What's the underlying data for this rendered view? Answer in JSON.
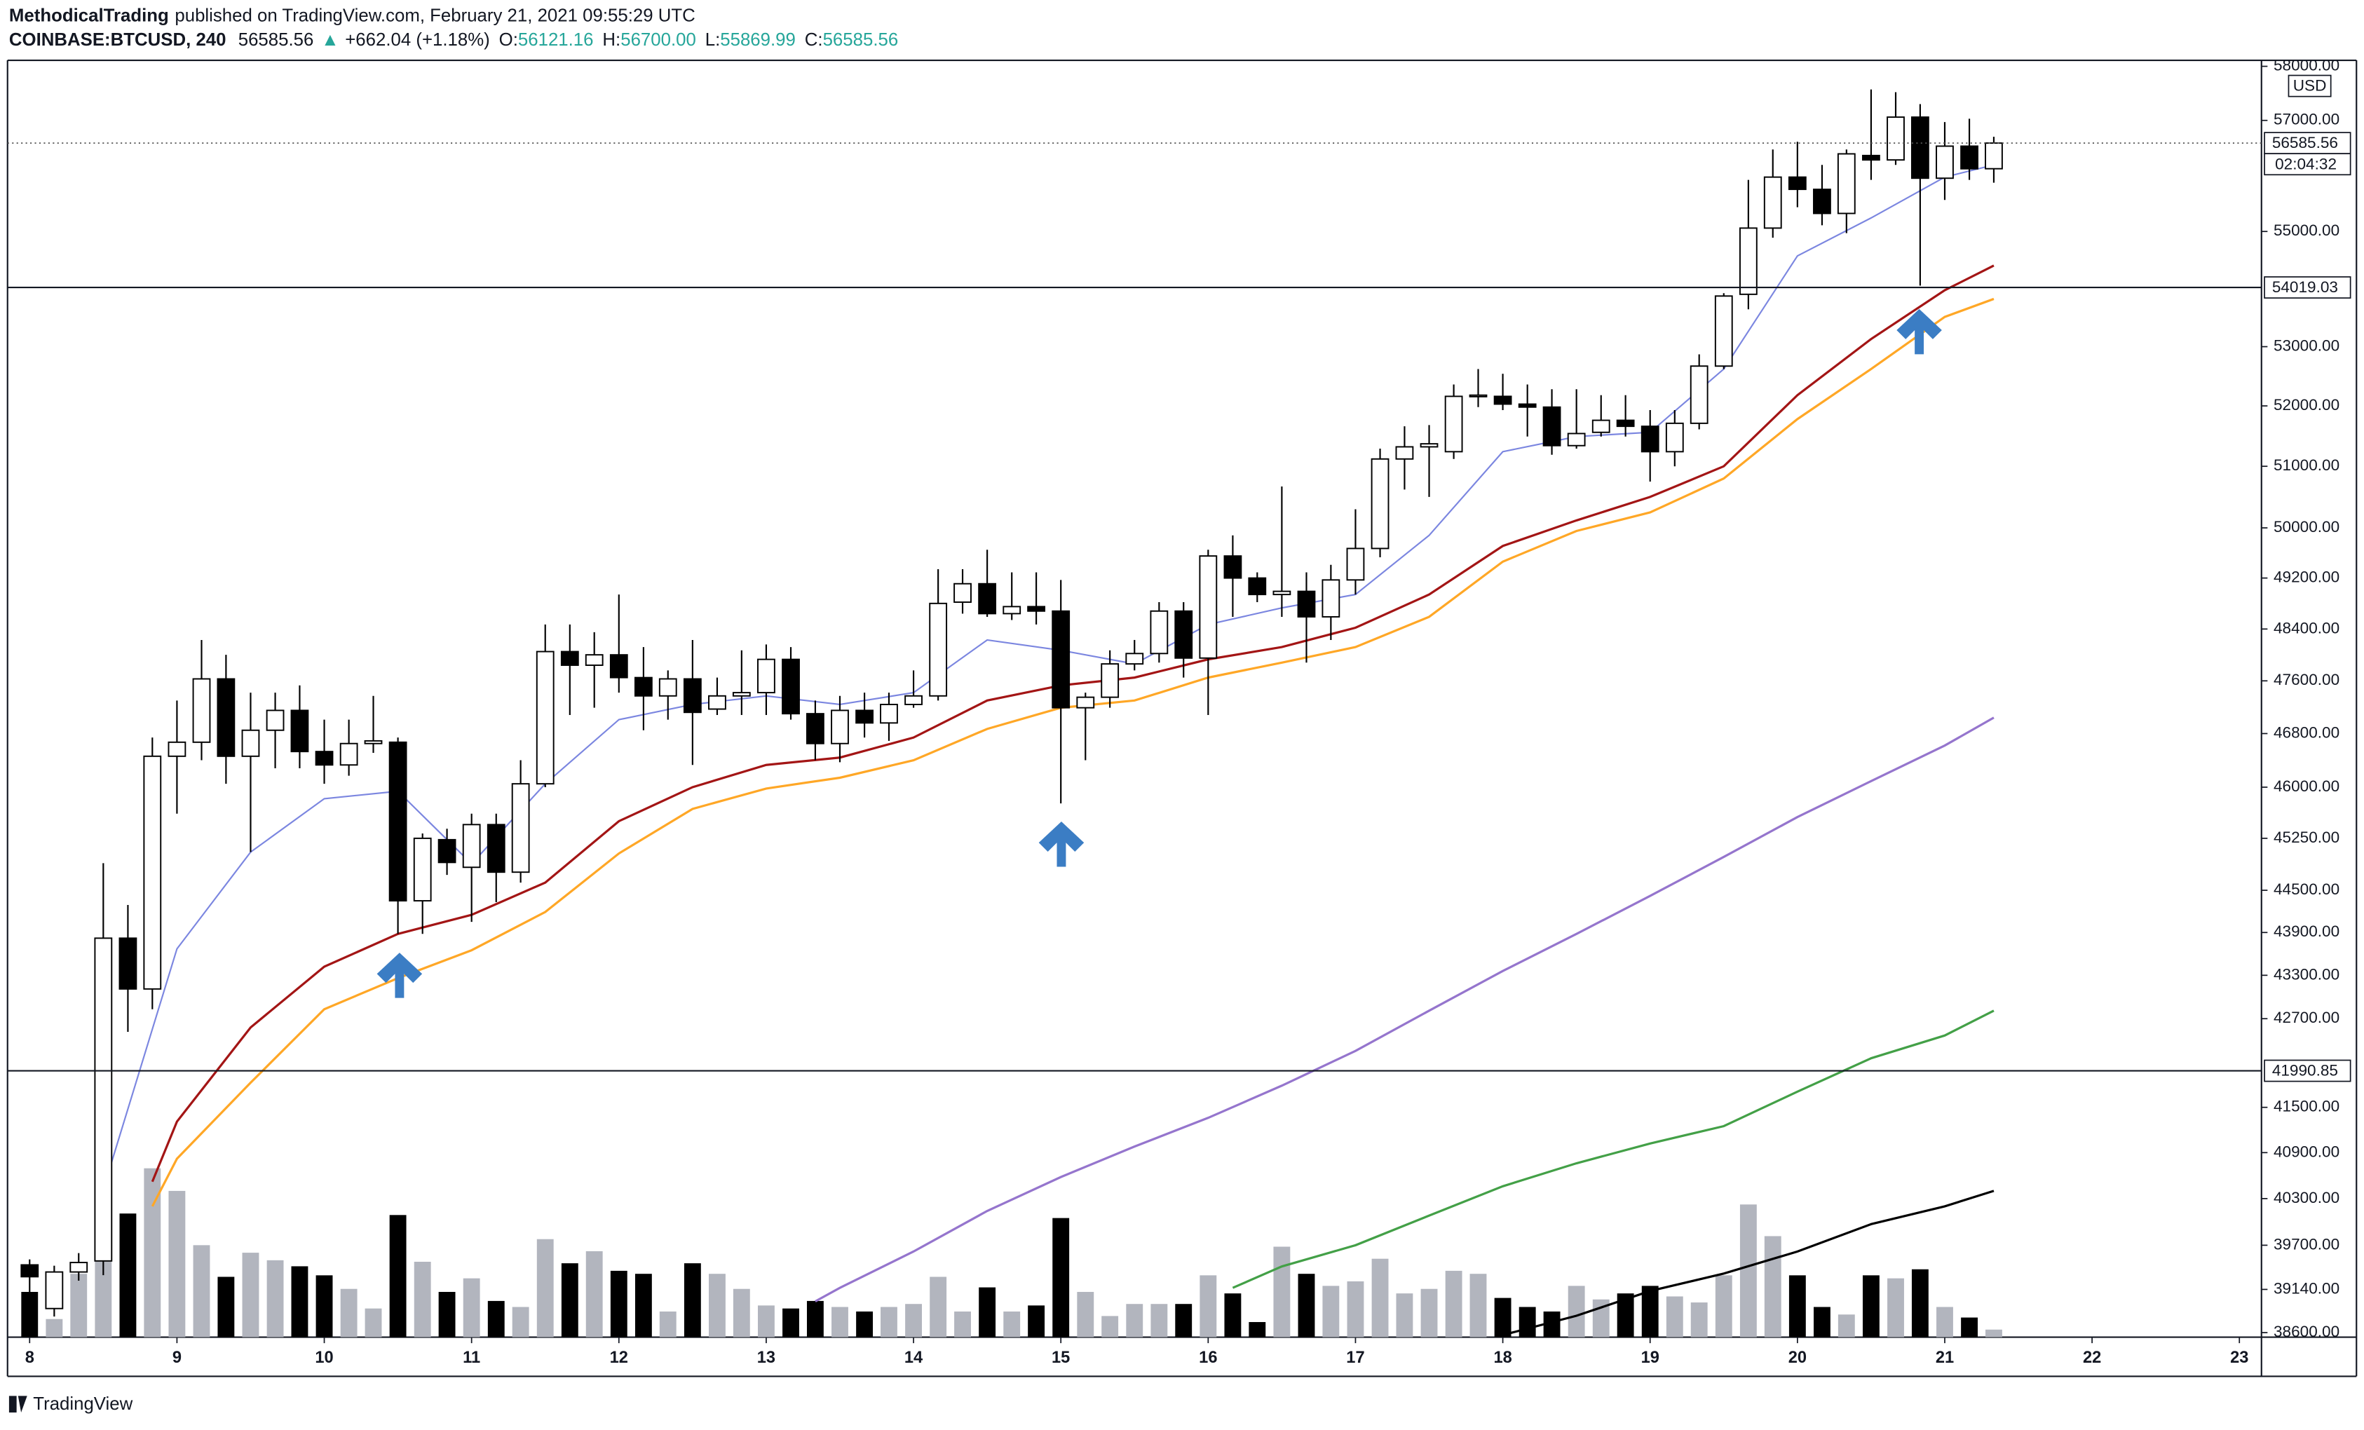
{
  "header": {
    "author": "MethodicalTrading",
    "published": "published on TradingView.com, February 21, 2021 09:55:29 UTC",
    "symbol": "COINBASE:BTCUSD, 240",
    "price": "56585.56",
    "change_arrow": "▲",
    "change": "+662.04 (+1.18%)",
    "ohlc": [
      {
        "label": "O:",
        "value": "56121.16"
      },
      {
        "label": "H:",
        "value": "56700.00"
      },
      {
        "label": "L:",
        "value": "55869.99"
      },
      {
        "label": "C:",
        "value": "56585.56"
      }
    ]
  },
  "footer": {
    "brand": "TradingView"
  },
  "chart_data": {
    "type": "candlestick",
    "log_scale": true,
    "grid": false,
    "y_unit": "USD",
    "up_color": "#ffffff",
    "down_color": "#000000",
    "volume_up_color": "#b2b5be",
    "volume_down_color": "#000000",
    "xlim": [
      7.85,
      23.15
    ],
    "xticks": [
      8,
      9,
      10,
      11,
      12,
      13,
      14,
      15,
      16,
      17,
      18,
      19,
      20,
      21,
      22,
      23
    ],
    "ylim": [
      38544,
      58112
    ],
    "yticks": [
      {
        "value": 58000,
        "label": "58000.00"
      },
      {
        "value": 57000,
        "label": "57000.00"
      },
      {
        "value": 55000,
        "label": "55000.00"
      },
      {
        "value": 53000,
        "label": "53000.00"
      },
      {
        "value": 52000,
        "label": "52000.00"
      },
      {
        "value": 51000,
        "label": "51000.00"
      },
      {
        "value": 50000,
        "label": "50000.00"
      },
      {
        "value": 49200,
        "label": "49200.00"
      },
      {
        "value": 48400,
        "label": "48400.00"
      },
      {
        "value": 47600,
        "label": "47600.00"
      },
      {
        "value": 46800,
        "label": "46800.00"
      },
      {
        "value": 46000,
        "label": "46000.00"
      },
      {
        "value": 45250,
        "label": "45250.00"
      },
      {
        "value": 44500,
        "label": "44500.00"
      },
      {
        "value": 43900,
        "label": "43900.00"
      },
      {
        "value": 43300,
        "label": "43300.00"
      },
      {
        "value": 42700,
        "label": "42700.00"
      },
      {
        "value": 41500,
        "label": "41500.00"
      },
      {
        "value": 40900,
        "label": "40900.00"
      },
      {
        "value": 40300,
        "label": "40300.00"
      },
      {
        "value": 39700,
        "label": "39700.00"
      },
      {
        "value": 39140,
        "label": "39140.00"
      },
      {
        "value": 38600,
        "label": "38600.00"
      }
    ],
    "y2lim": [
      0,
      120
    ],
    "x": [
      8,
      8.167,
      8.333,
      8.5,
      8.667,
      8.833,
      9,
      9.167,
      9.333,
      9.5,
      9.667,
      9.833,
      10,
      10.167,
      10.333,
      10.5,
      10.667,
      10.833,
      11,
      11.167,
      11.333,
      11.5,
      11.667,
      11.833,
      12,
      12.167,
      12.333,
      12.5,
      12.667,
      12.833,
      13,
      13.167,
      13.333,
      13.5,
      13.667,
      13.833,
      14,
      14.167,
      14.333,
      14.5,
      14.667,
      14.833,
      15,
      15.167,
      15.333,
      15.5,
      15.667,
      15.833,
      16,
      16.167,
      16.333,
      16.5,
      16.667,
      16.833,
      17,
      17.167,
      17.333,
      17.5,
      17.667,
      17.833,
      18,
      18.167,
      18.333,
      18.5,
      18.667,
      18.833,
      19,
      19.167,
      19.333,
      19.5,
      19.667,
      19.833,
      20,
      20.167,
      20.333,
      20.5,
      20.667,
      20.833,
      21,
      21.167,
      21.333
    ],
    "open": [
      39450,
      38900,
      39360,
      39500,
      43820,
      43110,
      46460,
      46670,
      47630,
      46460,
      46850,
      47150,
      46530,
      46330,
      46650,
      46670,
      44350,
      45230,
      44830,
      45450,
      44760,
      46050,
      48050,
      47840,
      48000,
      47650,
      47370,
      47630,
      47170,
      47370,
      47420,
      47930,
      47100,
      46650,
      47150,
      46960,
      47240,
      47370,
      48820,
      49110,
      48640,
      48750,
      48680,
      47190,
      47350,
      47860,
      48020,
      48680,
      47950,
      49550,
      49200,
      48940,
      48990,
      48590,
      49170,
      49670,
      51120,
      51320,
      51240,
      52160,
      52160,
      52030,
      51980,
      51340,
      51560,
      51760,
      51660,
      51240,
      51710,
      52670,
      53900,
      55060,
      55970,
      55750,
      55320,
      56360,
      56280,
      57060,
      55950,
      56530,
      56121.16
    ],
    "high": [
      39520,
      39440,
      39600,
      44890,
      44290,
      46740,
      47300,
      48230,
      48000,
      47420,
      47420,
      47530,
      47010,
      47010,
      47370,
      46740,
      45320,
      45390,
      45610,
      45610,
      46400,
      48470,
      48470,
      48350,
      48940,
      48120,
      47760,
      48230,
      47650,
      48070,
      48160,
      48120,
      47300,
      47370,
      47420,
      47420,
      47760,
      49340,
      49340,
      49650,
      49290,
      49290,
      49170,
      47420,
      48070,
      48230,
      48820,
      48820,
      49650,
      49880,
      49290,
      50670,
      49290,
      49410,
      50300,
      51290,
      51660,
      51680,
      52360,
      52620,
      52540,
      52360,
      52280,
      52280,
      52180,
      52180,
      51930,
      51930,
      52870,
      53920,
      55920,
      56470,
      56610,
      56190,
      56470,
      57570,
      57520,
      57300,
      56970,
      57030,
      56700
    ],
    "low": [
      38700,
      38800,
      39250,
      39320,
      42520,
      42830,
      45610,
      46400,
      46050,
      45050,
      46280,
      46280,
      46050,
      46170,
      46510,
      43880,
      43880,
      44720,
      44050,
      44330,
      44610,
      46000,
      47080,
      47190,
      47420,
      46850,
      47010,
      46330,
      47080,
      47080,
      47080,
      47010,
      46400,
      46370,
      46740,
      46690,
      47190,
      47300,
      48640,
      48590,
      48540,
      48470,
      45760,
      46400,
      47190,
      47760,
      47880,
      47650,
      47080,
      48590,
      48820,
      48590,
      47880,
      48230,
      48940,
      49530,
      50620,
      50500,
      51120,
      51980,
      51930,
      51490,
      51190,
      51290,
      51490,
      51490,
      50750,
      51000,
      51610,
      52620,
      53640,
      54890,
      55430,
      55110,
      54970,
      55920,
      56190,
      54050,
      55560,
      55920,
      55869.99
    ],
    "close": [
      39300,
      39360,
      39480,
      43820,
      43110,
      46460,
      46670,
      47630,
      46460,
      46850,
      47150,
      46530,
      46330,
      46650,
      46690,
      44350,
      45250,
      44900,
      45450,
      44760,
      46050,
      48050,
      47840,
      48000,
      47650,
      47370,
      47630,
      47120,
      47370,
      47420,
      47930,
      47100,
      46650,
      47150,
      46960,
      47240,
      47370,
      48800,
      49110,
      48640,
      48750,
      48680,
      47190,
      47350,
      47860,
      48020,
      48680,
      47950,
      49550,
      49200,
      48940,
      48990,
      48590,
      49170,
      49670,
      51120,
      51320,
      51370,
      52160,
      52180,
      52030,
      51980,
      51340,
      51540,
      51760,
      51660,
      51240,
      51710,
      52670,
      53870,
      55060,
      55970,
      55750,
      55320,
      56390,
      56280,
      57060,
      55950,
      56530,
      56120,
      56585.56
    ],
    "volume": [
      30,
      12,
      42,
      90,
      82,
      112,
      97,
      61,
      40,
      56,
      51,
      47,
      41,
      32,
      19,
      81,
      50,
      30,
      39,
      24,
      20,
      65,
      49,
      57,
      44,
      42,
      17,
      49,
      42,
      32,
      21,
      19,
      24,
      20,
      17,
      20,
      22,
      40,
      17,
      33,
      17,
      21,
      79,
      30,
      14,
      22,
      22,
      22,
      41,
      29,
      10,
      60,
      42,
      34,
      37,
      52,
      29,
      32,
      44,
      42,
      26,
      20,
      17,
      34,
      25,
      29,
      34,
      27,
      23,
      41,
      88,
      67,
      41,
      20,
      15,
      41,
      39,
      45,
      20,
      13,
      5
    ],
    "overlays": [
      {
        "color": "#7b86e0",
        "x": [
          8.5,
          9,
          9.5,
          10,
          10.5,
          11,
          11.5,
          12,
          12.5,
          13,
          13.5,
          14,
          14.5,
          15,
          15.5,
          16,
          16.5,
          17,
          17.5,
          18,
          18.5,
          19,
          19.5,
          20,
          20.5,
          21,
          21.333
        ],
        "values": [
          40420,
          43670,
          45050,
          45830,
          45940,
          44880,
          46050,
          47010,
          47240,
          47370,
          47240,
          47420,
          48230,
          48070,
          47860,
          48470,
          48730,
          48940,
          49880,
          51240,
          51490,
          51560,
          52620,
          54570,
          55240,
          55970,
          56190
        ]
      },
      {
        "color": "#a31515",
        "x": [
          8.833,
          9,
          9.5,
          10,
          10.5,
          11,
          11.5,
          12,
          12.5,
          13,
          13.5,
          14,
          14.5,
          15,
          15.5,
          16,
          16.5,
          17,
          17.5,
          18,
          18.5,
          19,
          19.5,
          20,
          20.5,
          21,
          21.333
        ],
        "values": [
          40520,
          41310,
          42580,
          43420,
          43880,
          44150,
          44610,
          45500,
          46000,
          46330,
          46440,
          46740,
          47300,
          47530,
          47650,
          47930,
          48120,
          48420,
          48940,
          49710,
          50120,
          50500,
          51000,
          52180,
          53130,
          53970,
          54400
        ]
      },
      {
        "color": "#ffa726",
        "x": [
          8.833,
          9,
          9.5,
          10,
          10.5,
          11,
          11.5,
          12,
          12.5,
          13,
          13.5,
          14,
          14.5,
          15,
          15.5,
          16,
          16.5,
          17,
          17.5,
          18,
          18.5,
          19,
          19.5,
          20,
          20.5,
          21,
          21.333
        ],
        "values": [
          40200,
          40820,
          41830,
          42830,
          43260,
          43650,
          44190,
          45030,
          45680,
          45980,
          46140,
          46400,
          46870,
          47190,
          47300,
          47650,
          47880,
          48120,
          48590,
          49460,
          49950,
          50250,
          50800,
          51780,
          52620,
          53510,
          53820
        ]
      },
      {
        "color": "#9575cd",
        "x": [
          13.333,
          13.5,
          14,
          14.5,
          15,
          15.5,
          16,
          16.5,
          17,
          17.5,
          18,
          18.5,
          19,
          19.5,
          20,
          20.5,
          21,
          21.333
        ],
        "values": [
          38990,
          39160,
          39620,
          40140,
          40580,
          40980,
          41360,
          41790,
          42260,
          42810,
          43360,
          43880,
          44420,
          44980,
          45560,
          46090,
          46620,
          47040
        ]
      },
      {
        "color": "#43a047",
        "x": [
          16.167,
          16.5,
          17,
          17.5,
          18,
          18.5,
          19,
          19.5,
          20,
          20.5,
          21,
          21.333
        ],
        "values": [
          39160,
          39430,
          39700,
          40080,
          40460,
          40760,
          41020,
          41250,
          41710,
          42160,
          42470,
          42810
        ]
      },
      {
        "color": "#000000",
        "x": [
          18,
          18.5,
          19,
          19.5,
          20,
          20.5,
          21,
          21.333
        ],
        "values": [
          38570,
          38810,
          39120,
          39340,
          39620,
          39970,
          40200,
          40400
        ]
      }
    ],
    "levels": [
      54019.03,
      41990.85
    ],
    "last_price": 56585.56,
    "countdown": "02:04:32"
  }
}
